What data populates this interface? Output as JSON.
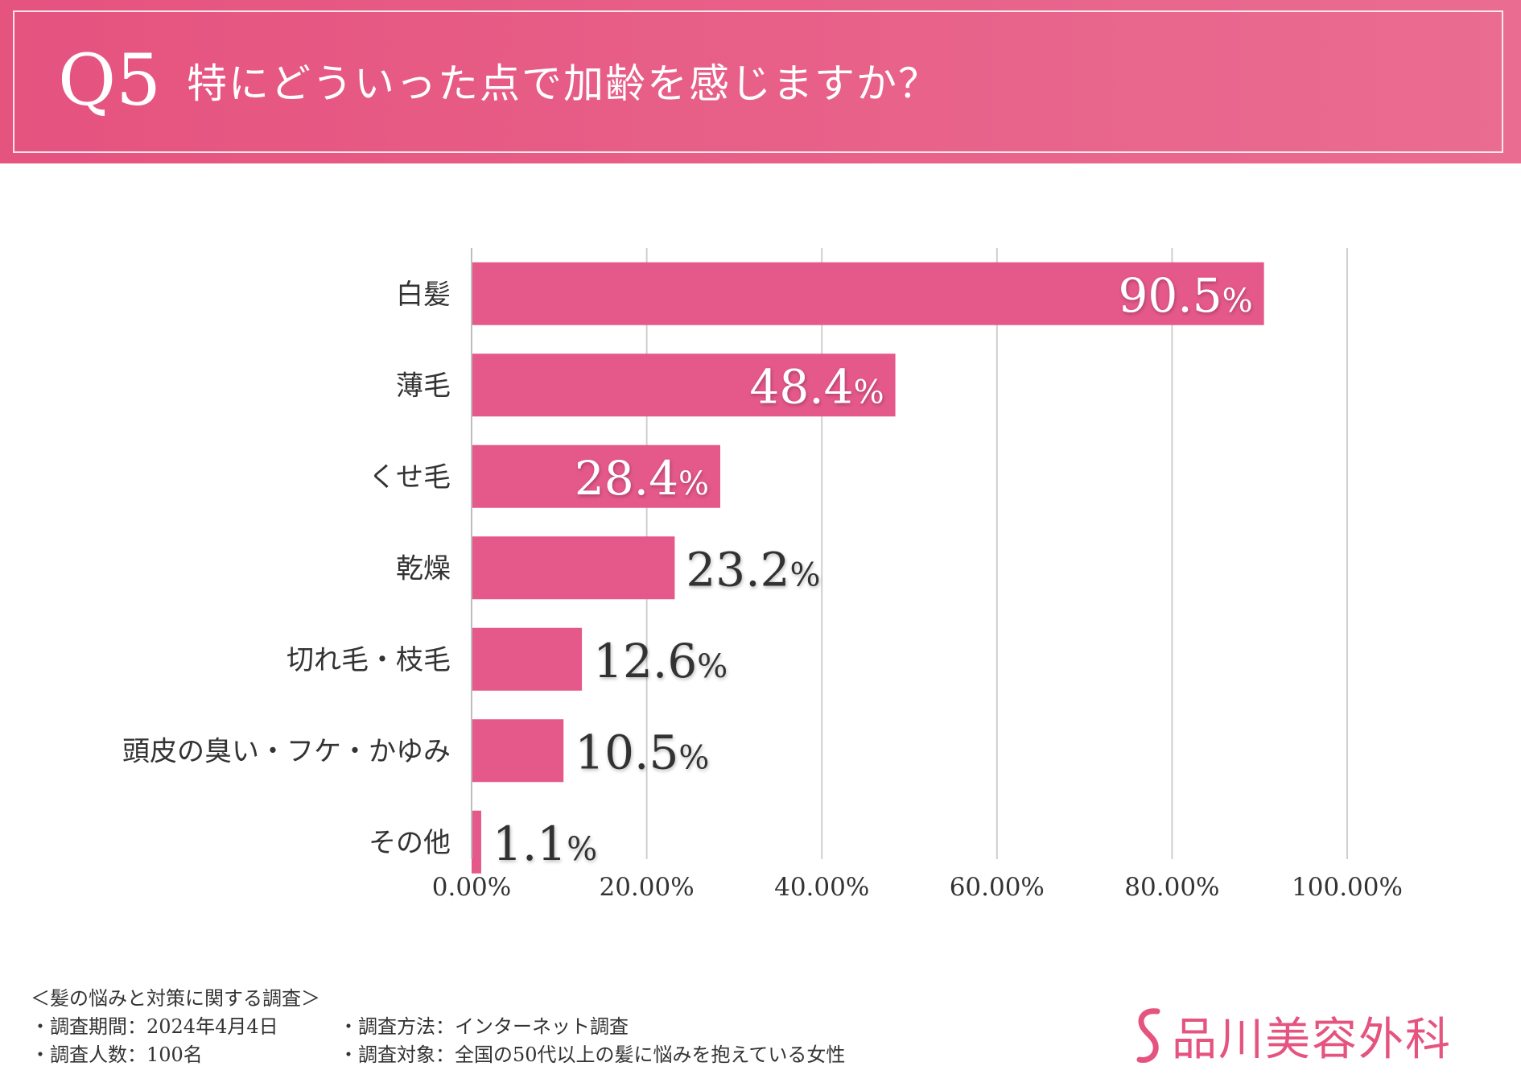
{
  "header": {
    "question_number": "Q5",
    "question_text": "特にどういった点で加齢を感じますか？"
  },
  "chart_data": {
    "type": "bar",
    "orientation": "horizontal",
    "categories": [
      "白髪",
      "薄毛",
      "くせ毛",
      "乾燥",
      "切れ毛・枝毛",
      "頭皮の臭い・フケ・かゆみ",
      "その他"
    ],
    "values": [
      90.5,
      48.4,
      28.4,
      23.2,
      12.6,
      10.5,
      1.1
    ],
    "value_labels": [
      "90.5",
      "48.4",
      "28.4",
      "23.2",
      "12.6",
      "10.5",
      "1.1"
    ],
    "value_unit": "%",
    "x_ticks": [
      "0.00%",
      "20.00%",
      "40.00%",
      "60.00%",
      "80.00%",
      "100.00%"
    ],
    "xlim": [
      0,
      100
    ],
    "grid": true,
    "bar_color": "#e5588a"
  },
  "footer": {
    "survey_title": "＜髪の悩みと対策に関する調査＞",
    "period": "・調査期間：2024年4月4日",
    "method": "・調査方法：インターネット調査",
    "respondents": "・調査人数：100名",
    "target": "・調査対象：全国の50代以上の髪に悩みを抱えている女性"
  },
  "logo": {
    "name": "品川美容外科",
    "color": "#e5537f"
  }
}
